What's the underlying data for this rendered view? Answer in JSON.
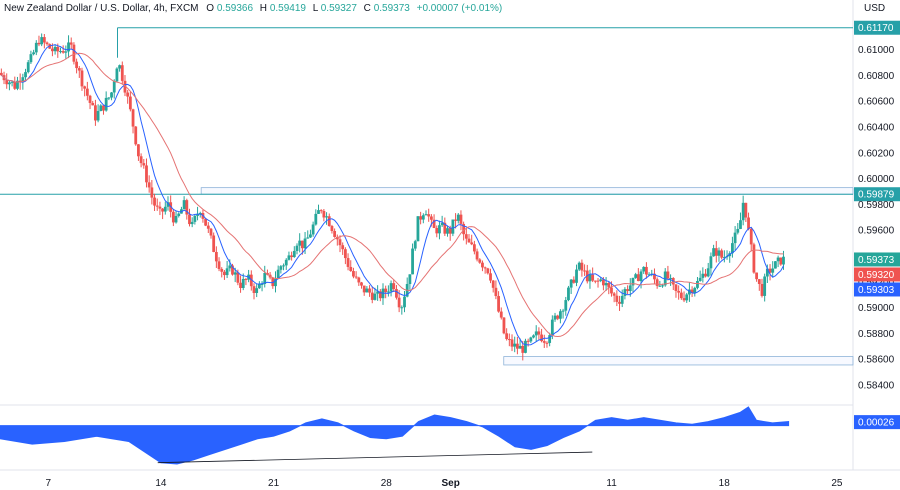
{
  "header": {
    "symbol": "New Zealand Dollar / U.S. Dollar, 4h, FXCM",
    "o_label": "O",
    "o_value": "0.59366",
    "h_label": "H",
    "h_value": "0.59419",
    "l_label": "L",
    "l_value": "0.59327",
    "c_label": "C",
    "c_value": "0.59373",
    "change": "+0.00007 (+0.01%)",
    "currency": "USD"
  },
  "colors": {
    "bull": "#26a69a",
    "bear": "#ef5350",
    "ma_fast": "#2962ff",
    "ma_slow": "#e57373",
    "level_line": "#26a0a8",
    "oscillator": "#2962ff",
    "axis_text": "#131722"
  },
  "chart_data": [
    {
      "type": "candlestick",
      "title": "",
      "yaxis_labels": [
        "0.61000",
        "0.60800",
        "0.60600",
        "0.60400",
        "0.60200",
        "0.60000",
        "0.59800",
        "0.59600",
        "0.59400",
        "0.59200",
        "0.59000",
        "0.58800",
        "0.58600",
        "0.58400"
      ],
      "ylim": [
        0.5826,
        0.6123
      ],
      "xaxis_labels": [
        "7",
        "14",
        "21",
        "28",
        "Sep",
        "11",
        "18",
        "25"
      ],
      "x_days": [
        7,
        14,
        21,
        28,
        32,
        42,
        49,
        56
      ],
      "x_range_days": [
        4,
        57
      ],
      "path": [
        [
          4.0,
          0.6082
        ],
        [
          5.0,
          0.6072
        ],
        [
          6.0,
          0.6092
        ],
        [
          6.5,
          0.6108
        ],
        [
          7.5,
          0.6098
        ],
        [
          8.5,
          0.6102
        ],
        [
          9.0,
          0.6082
        ],
        [
          10.0,
          0.6048
        ],
        [
          10.6,
          0.6058
        ],
        [
          11.0,
          0.6066
        ],
        [
          11.4,
          0.6092
        ],
        [
          11.8,
          0.6074
        ],
        [
          12.3,
          0.6045
        ],
        [
          12.7,
          0.6018
        ],
        [
          13.2,
          0.6
        ],
        [
          13.6,
          0.5982
        ],
        [
          14.0,
          0.5972
        ],
        [
          14.5,
          0.598
        ],
        [
          15.0,
          0.5966
        ],
        [
          15.5,
          0.598
        ],
        [
          16.0,
          0.5962
        ],
        [
          16.5,
          0.5978
        ],
        [
          17.0,
          0.596
        ],
        [
          17.5,
          0.594
        ],
        [
          18.0,
          0.5925
        ],
        [
          18.5,
          0.593
        ],
        [
          19.0,
          0.5918
        ],
        [
          19.5,
          0.5922
        ],
        [
          20.0,
          0.5912
        ],
        [
          20.5,
          0.5925
        ],
        [
          21.0,
          0.5918
        ],
        [
          21.5,
          0.5932
        ],
        [
          22.0,
          0.5938
        ],
        [
          22.5,
          0.5952
        ],
        [
          23.0,
          0.5948
        ],
        [
          23.5,
          0.5962
        ],
        [
          24.0,
          0.5978
        ],
        [
          24.5,
          0.5968
        ],
        [
          25.0,
          0.5955
        ],
        [
          25.5,
          0.594
        ],
        [
          26.0,
          0.5925
        ],
        [
          26.5,
          0.5915
        ],
        [
          27.0,
          0.5912
        ],
        [
          27.5,
          0.5908
        ],
        [
          28.0,
          0.5912
        ],
        [
          28.5,
          0.592
        ],
        [
          29.0,
          0.59
        ],
        [
          29.5,
          0.5925
        ],
        [
          30.0,
          0.5965
        ],
        [
          30.5,
          0.5978
        ],
        [
          31.0,
          0.596
        ],
        [
          31.5,
          0.5962
        ],
        [
          32.0,
          0.5958
        ],
        [
          32.5,
          0.5972
        ],
        [
          33.0,
          0.5952
        ],
        [
          33.5,
          0.5945
        ],
        [
          34.0,
          0.5935
        ],
        [
          34.5,
          0.5928
        ],
        [
          35.0,
          0.59
        ],
        [
          35.5,
          0.5875
        ],
        [
          36.0,
          0.587
        ],
        [
          36.5,
          0.5868
        ],
        [
          37.0,
          0.5872
        ],
        [
          37.5,
          0.588
        ],
        [
          38.0,
          0.5875
        ],
        [
          38.5,
          0.589
        ],
        [
          39.0,
          0.59
        ],
        [
          39.5,
          0.5915
        ],
        [
          40.0,
          0.5932
        ],
        [
          40.5,
          0.5925
        ],
        [
          41.0,
          0.5918
        ],
        [
          41.5,
          0.5922
        ],
        [
          42.0,
          0.5912
        ],
        [
          42.5,
          0.5905
        ],
        [
          43.0,
          0.5915
        ],
        [
          43.5,
          0.592
        ],
        [
          44.0,
          0.593
        ],
        [
          44.5,
          0.5925
        ],
        [
          45.0,
          0.5918
        ],
        [
          45.5,
          0.5925
        ],
        [
          46.0,
          0.5912
        ],
        [
          46.5,
          0.5908
        ],
        [
          47.0,
          0.5915
        ],
        [
          47.5,
          0.592
        ],
        [
          48.0,
          0.593
        ],
        [
          48.5,
          0.5945
        ],
        [
          49.0,
          0.5938
        ],
        [
          49.5,
          0.5948
        ],
        [
          50.0,
          0.596
        ],
        [
          50.3,
          0.5985
        ],
        [
          50.6,
          0.5958
        ],
        [
          51.0,
          0.5925
        ],
        [
          51.4,
          0.5912
        ],
        [
          51.8,
          0.5928
        ],
        [
          52.2,
          0.5932
        ],
        [
          52.6,
          0.5937
        ]
      ],
      "series": [
        {
          "name": "",
          "kind": "candles"
        },
        {
          "name": "",
          "kind": "moving-average-fast"
        },
        {
          "name": "",
          "kind": "moving-average-slow"
        }
      ],
      "levels": [
        {
          "value": 0.6117,
          "label": "0.61170",
          "from_day": 11.3
        },
        {
          "value": 0.59879,
          "label": "0.59879",
          "from_day": 4.0
        }
      ],
      "zones": [
        {
          "from_day": 16.5,
          "to_day": 57,
          "low": 0.59879,
          "high": 0.5993
        },
        {
          "from_day": 35.3,
          "to_day": 57,
          "low": 0.58555,
          "high": 0.5862
        }
      ],
      "price_badges": [
        {
          "label": "0.59373",
          "value": 0.59373,
          "color": "#26a69a"
        },
        {
          "label": "0.59320",
          "value": 0.5932,
          "color": "#ef5350"
        },
        {
          "label": "0.59303",
          "value": 0.59303,
          "color": "#2962ff"
        }
      ],
      "grid": false
    },
    {
      "type": "area",
      "title": "",
      "badge_label": "0.00026",
      "current_value": 0.00026,
      "baseline": 0,
      "ylim": [
        -0.0032,
        0.0014
      ],
      "x": [
        4,
        6,
        8,
        10,
        12,
        13,
        14,
        15,
        16,
        17,
        18,
        19,
        20,
        21,
        22,
        23,
        24,
        25,
        26,
        27,
        28,
        29,
        30,
        31,
        32,
        33,
        34,
        35,
        36,
        37,
        38,
        39,
        40,
        41,
        42,
        43,
        44,
        45,
        46,
        47,
        48,
        49,
        50,
        50.5,
        51,
        52,
        53
      ],
      "values": [
        -0.001,
        -0.0014,
        -0.0012,
        -0.0008,
        -0.0012,
        -0.002,
        -0.0028,
        -0.0029,
        -0.0026,
        -0.0022,
        -0.0018,
        -0.0014,
        -0.001,
        -0.0008,
        -0.0004,
        0.0002,
        0.0005,
        0.0002,
        -0.0004,
        -0.0009,
        -0.001,
        -0.0008,
        0.0003,
        0.0008,
        0.0006,
        0.0003,
        -0.0001,
        -0.0008,
        -0.0016,
        -0.0018,
        -0.0015,
        -0.0009,
        -0.0004,
        0.0004,
        0.0006,
        0.0004,
        0.0006,
        0.0004,
        0.0002,
        0.0001,
        0.0003,
        0.0006,
        0.001,
        0.0014,
        0.0004,
        0.0002,
        0.0003
      ],
      "trendline": [
        [
          13.8,
          -0.0028
        ],
        [
          40.8,
          -0.002
        ]
      ]
    }
  ]
}
